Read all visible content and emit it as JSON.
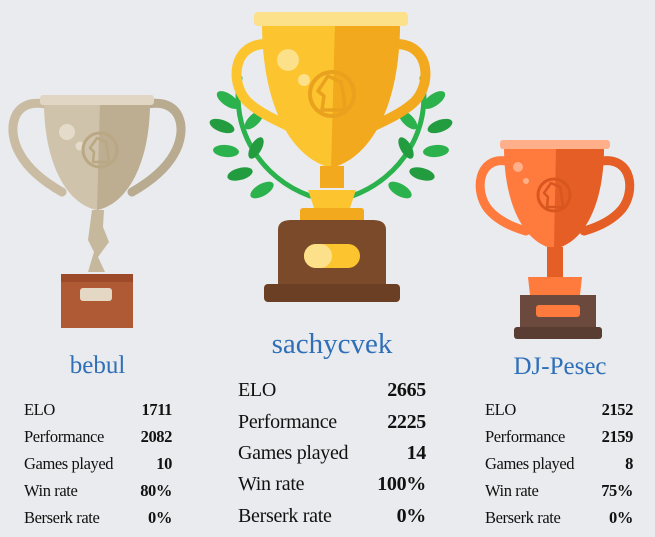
{
  "podium": [
    {
      "rank": "silver",
      "username": "bebul",
      "stats": [
        {
          "label": "ELO",
          "value": "1711"
        },
        {
          "label": "Performance",
          "value": "2082"
        },
        {
          "label": "Games played",
          "value": "10"
        },
        {
          "label": "Win rate",
          "value": "80%"
        },
        {
          "label": "Berserk rate",
          "value": "0%"
        }
      ],
      "colors": {
        "cup": "#d0c3ab",
        "cup_shade": "#b9ab90",
        "base": "#b05a35"
      }
    },
    {
      "rank": "gold",
      "username": "sachycvek",
      "stats": [
        {
          "label": "ELO",
          "value": "2665"
        },
        {
          "label": "Performance",
          "value": "2225"
        },
        {
          "label": "Games played",
          "value": "14"
        },
        {
          "label": "Win rate",
          "value": "100%"
        },
        {
          "label": "Berserk rate",
          "value": "0%"
        }
      ],
      "colors": {
        "cup": "#fcc530",
        "cup_shade": "#f2a91d",
        "base": "#7a4a2a",
        "laurel": "#2bb24c"
      }
    },
    {
      "rank": "bronze",
      "username": "DJ-Pesec",
      "stats": [
        {
          "label": "ELO",
          "value": "2152"
        },
        {
          "label": "Performance",
          "value": "2159"
        },
        {
          "label": "Games played",
          "value": "8"
        },
        {
          "label": "Win rate",
          "value": "75%"
        },
        {
          "label": "Berserk rate",
          "value": "0%"
        }
      ],
      "colors": {
        "cup": "#ff7a3d",
        "cup_shade": "#e55e25",
        "base": "#6b4a3d"
      }
    }
  ]
}
